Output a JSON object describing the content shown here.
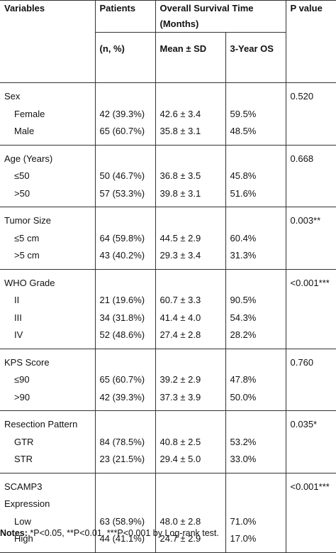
{
  "header": {
    "variables": "Variables",
    "patients": "Patients",
    "survival": "Overall Survival Time (Months)",
    "pvalue": "P value",
    "patients_sub": "(n, %)",
    "mean_sd": "Mean ± SD",
    "os3": "3-Year OS"
  },
  "groups": [
    {
      "name": "Sex",
      "p": "0.520",
      "rows": [
        {
          "label": "Female",
          "n": "42 (39.3%)",
          "mean": "42.6 ± 3.4",
          "os": "59.5%"
        },
        {
          "label": "Male",
          "n": "65 (60.7%)",
          "mean": "35.8 ± 3.1",
          "os": "48.5%"
        }
      ]
    },
    {
      "name": "Age (Years)",
      "p": "0.668",
      "rows": [
        {
          "label": "≤50",
          "n": "50 (46.7%)",
          "mean": "36.8 ± 3.5",
          "os": "45.8%"
        },
        {
          "label": ">50",
          "n": "57 (53.3%)",
          "mean": "39.8 ± 3.1",
          "os": "51.6%"
        }
      ]
    },
    {
      "name": "Tumor Size",
      "p": "0.003**",
      "rows": [
        {
          "label": "≤5 cm",
          "n": "64 (59.8%)",
          "mean": "44.5 ± 2.9",
          "os": "60.4%"
        },
        {
          "label": ">5 cm",
          "n": "43 (40.2%)",
          "mean": "29.3 ± 3.4",
          "os": "31.3%"
        }
      ]
    },
    {
      "name": "WHO Grade",
      "p": "<0.001***",
      "rows": [
        {
          "label": "II",
          "n": "21 (19.6%)",
          "mean": "60.7 ± 3.3",
          "os": "90.5%"
        },
        {
          "label": "III",
          "n": "34 (31.8%)",
          "mean": "41.4 ± 4.0",
          "os": "54.3%"
        },
        {
          "label": "IV",
          "n": "52 (48.6%)",
          "mean": "27.4 ± 2.8",
          "os": "28.2%"
        }
      ]
    },
    {
      "name": "KPS Score",
      "p": "0.760",
      "rows": [
        {
          "label": "≤90",
          "n": "65 (60.7%)",
          "mean": "39.2 ± 2.9",
          "os": "47.8%"
        },
        {
          "label": ">90",
          "n": "42 (39.3%)",
          "mean": "37.3 ± 3.9",
          "os": "50.0%"
        }
      ]
    },
    {
      "name": "Resection Pattern",
      "p": "0.035*",
      "rows": [
        {
          "label": "GTR",
          "n": "84 (78.5%)",
          "mean": "40.8 ± 2.5",
          "os": "53.2%"
        },
        {
          "label": "STR",
          "n": "23 (21.5%)",
          "mean": "29.4 ± 5.0",
          "os": "33.0%"
        }
      ]
    },
    {
      "name": "SCAMP3",
      "name2": "Expression",
      "p": "<0.001***",
      "rows": [
        {
          "label": "Low",
          "n": "63 (58.9%)",
          "mean": "48.0 ± 2.8",
          "os": "71.0%"
        },
        {
          "label": "High",
          "n": "44 (41.1%)",
          "mean": "24.7 ± 2.9",
          "os": "17.0%"
        }
      ]
    }
  ],
  "notes": {
    "label": "Notes:",
    "text": " *P<0.05, **P<0.01, ***P<0.001 by Log-rank test."
  }
}
